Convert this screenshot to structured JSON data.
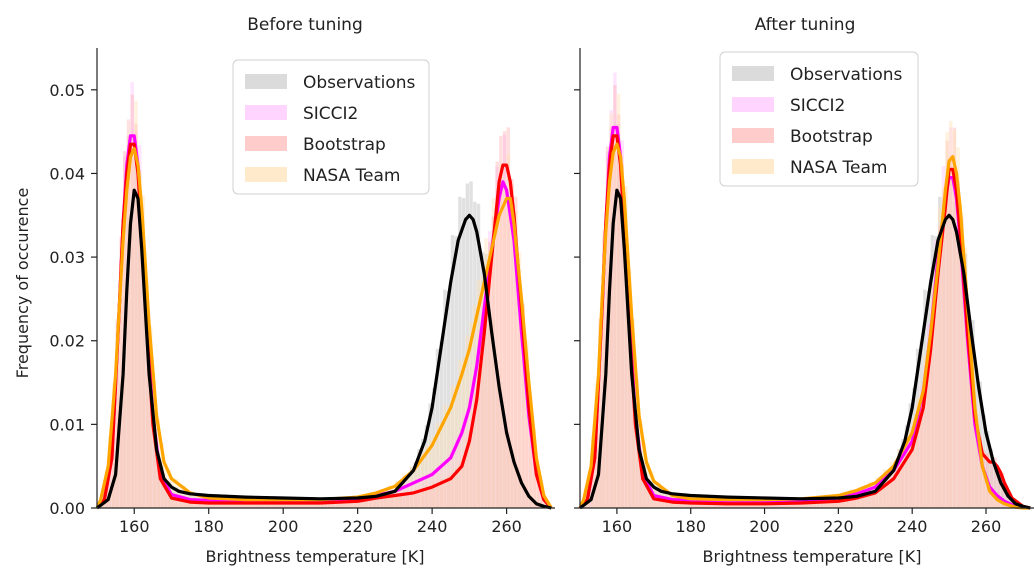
{
  "figure": {
    "ylabel": "Frequency of occurence"
  },
  "chart_data": [
    {
      "type": "area",
      "title": "Before tuning",
      "xlabel": "Brightness temperature [K]",
      "ylabel": "Frequency of occurence",
      "xlim": [
        150,
        273
      ],
      "ylim": [
        0,
        0.055
      ],
      "xticks": [
        "160",
        "180",
        "200",
        "220",
        "240",
        "260"
      ],
      "yticks": [
        "0.00",
        "0.01",
        "0.02",
        "0.03",
        "0.04",
        "0.05"
      ],
      "legend": {
        "placement": "top-center",
        "entries": [
          "Observations",
          "SICCI2",
          "Bootstrap",
          "NASA Team"
        ]
      },
      "series": [
        {
          "name": "Observations",
          "color": "#000000",
          "fill": "#c8c8c8",
          "hist_peak": [
            0.038,
            0.038
          ],
          "x": [
            150,
            153,
            155,
            157,
            158,
            159,
            160,
            161,
            162,
            164,
            166,
            168,
            170,
            172,
            175,
            180,
            190,
            200,
            210,
            220,
            225,
            230,
            235,
            238,
            240,
            243,
            245,
            247,
            249,
            250,
            251,
            252,
            254,
            256,
            258,
            260,
            262,
            264,
            266,
            268,
            270,
            272
          ],
          "y": [
            0,
            0.001,
            0.004,
            0.016,
            0.026,
            0.034,
            0.038,
            0.037,
            0.031,
            0.016,
            0.007,
            0.0035,
            0.0025,
            0.002,
            0.0017,
            0.0015,
            0.0013,
            0.0012,
            0.0011,
            0.0012,
            0.0014,
            0.002,
            0.0045,
            0.008,
            0.012,
            0.021,
            0.027,
            0.032,
            0.0345,
            0.035,
            0.0345,
            0.033,
            0.028,
            0.021,
            0.0145,
            0.009,
            0.0055,
            0.003,
            0.0014,
            0.0005,
            0.0002,
            0
          ]
        },
        {
          "name": "SICCI2",
          "color": "#ff00ff",
          "fill": "#ffbfff",
          "x": [
            150,
            152,
            154,
            156,
            157,
            158,
            159,
            160,
            161,
            162,
            163,
            165,
            167,
            170,
            175,
            180,
            190,
            200,
            210,
            220,
            225,
            230,
            235,
            240,
            245,
            248,
            250,
            252,
            254,
            256,
            258,
            259,
            260,
            262,
            264,
            266,
            268,
            270,
            272
          ],
          "y": [
            0,
            0.001,
            0.006,
            0.024,
            0.034,
            0.041,
            0.0445,
            0.0445,
            0.041,
            0.034,
            0.025,
            0.011,
            0.004,
            0.0016,
            0.001,
            0.0009,
            0.0008,
            0.0008,
            0.0008,
            0.001,
            0.0015,
            0.002,
            0.003,
            0.004,
            0.006,
            0.009,
            0.012,
            0.017,
            0.024,
            0.031,
            0.037,
            0.039,
            0.038,
            0.032,
            0.021,
            0.011,
            0.004,
            0.001,
            0
          ]
        },
        {
          "name": "Bootstrap",
          "color": "#ff0000",
          "fill": "#ffb0b0",
          "x": [
            150,
            152,
            154,
            156,
            157,
            158,
            159,
            160,
            161,
            162,
            163,
            165,
            167,
            170,
            175,
            180,
            190,
            200,
            210,
            220,
            225,
            230,
            235,
            240,
            245,
            248,
            250,
            252,
            254,
            256,
            258,
            259,
            260,
            261,
            262,
            264,
            266,
            268,
            270,
            272
          ],
          "y": [
            0,
            0.001,
            0.006,
            0.024,
            0.034,
            0.04,
            0.0435,
            0.0435,
            0.04,
            0.033,
            0.024,
            0.01,
            0.0035,
            0.0012,
            0.0007,
            0.0006,
            0.0006,
            0.0006,
            0.0006,
            0.0008,
            0.0012,
            0.0015,
            0.0018,
            0.0025,
            0.0035,
            0.005,
            0.008,
            0.013,
            0.021,
            0.03,
            0.039,
            0.041,
            0.041,
            0.039,
            0.035,
            0.024,
            0.012,
            0.004,
            0.001,
            0
          ]
        },
        {
          "name": "NASA Team",
          "color": "#ffa500",
          "fill": "#ffe1b0",
          "x": [
            150,
            151,
            153,
            155,
            156,
            157,
            158,
            159,
            160,
            161,
            162,
            164,
            166,
            168,
            170,
            175,
            180,
            190,
            200,
            210,
            220,
            225,
            230,
            235,
            240,
            245,
            248,
            250,
            252,
            254,
            256,
            258,
            259,
            260,
            261,
            262,
            264,
            266,
            268,
            270,
            272
          ],
          "y": [
            0,
            0.001,
            0.005,
            0.016,
            0.024,
            0.032,
            0.038,
            0.042,
            0.043,
            0.041,
            0.036,
            0.022,
            0.011,
            0.0055,
            0.0035,
            0.0018,
            0.0012,
            0.001,
            0.001,
            0.001,
            0.0013,
            0.0018,
            0.0026,
            0.0045,
            0.0075,
            0.012,
            0.016,
            0.019,
            0.023,
            0.027,
            0.031,
            0.035,
            0.036,
            0.037,
            0.037,
            0.034,
            0.025,
            0.015,
            0.006,
            0.0015,
            0
          ]
        }
      ]
    },
    {
      "type": "area",
      "title": "After tuning",
      "xlabel": "Brightness temperature [K]",
      "ylabel": "",
      "xlim": [
        150,
        273
      ],
      "ylim": [
        0,
        0.055
      ],
      "xticks": [
        "160",
        "180",
        "200",
        "220",
        "240",
        "260"
      ],
      "yticks": [],
      "legend": {
        "placement": "top-center",
        "entries": [
          "Observations",
          "SICCI2",
          "Bootstrap",
          "NASA Team"
        ]
      },
      "series": [
        {
          "name": "Observations",
          "color": "#000000",
          "fill": "#c8c8c8",
          "x": [
            150,
            153,
            155,
            157,
            158,
            159,
            160,
            161,
            162,
            164,
            166,
            168,
            170,
            172,
            175,
            180,
            190,
            200,
            210,
            220,
            225,
            230,
            235,
            238,
            240,
            243,
            245,
            247,
            249,
            250,
            251,
            252,
            254,
            256,
            258,
            260,
            262,
            264,
            266,
            268,
            270,
            272
          ],
          "y": [
            0,
            0.001,
            0.004,
            0.016,
            0.026,
            0.034,
            0.038,
            0.037,
            0.031,
            0.016,
            0.007,
            0.0035,
            0.0025,
            0.002,
            0.0017,
            0.0015,
            0.0013,
            0.0012,
            0.0011,
            0.0012,
            0.0014,
            0.002,
            0.0045,
            0.008,
            0.012,
            0.021,
            0.027,
            0.032,
            0.0345,
            0.035,
            0.0345,
            0.033,
            0.028,
            0.021,
            0.0145,
            0.009,
            0.0055,
            0.003,
            0.0014,
            0.0005,
            0.0002,
            0
          ]
        },
        {
          "name": "SICCI2",
          "color": "#ff00ff",
          "fill": "#ffbfff",
          "x": [
            150,
            152,
            154,
            156,
            157,
            158,
            159,
            160,
            161,
            162,
            163,
            165,
            167,
            170,
            175,
            180,
            190,
            200,
            210,
            220,
            225,
            230,
            235,
            240,
            243,
            245,
            247,
            249,
            250,
            251,
            252,
            253,
            255,
            257,
            259,
            261,
            263,
            265,
            267,
            270,
            272
          ],
          "y": [
            0,
            0.001,
            0.006,
            0.024,
            0.034,
            0.042,
            0.0455,
            0.0455,
            0.042,
            0.034,
            0.025,
            0.011,
            0.004,
            0.0015,
            0.001,
            0.0009,
            0.0008,
            0.0008,
            0.0009,
            0.0012,
            0.0017,
            0.0025,
            0.0045,
            0.008,
            0.014,
            0.021,
            0.03,
            0.037,
            0.0395,
            0.0395,
            0.037,
            0.032,
            0.02,
            0.01,
            0.005,
            0.0025,
            0.0015,
            0.0008,
            0.0004,
            0.0001,
            0
          ]
        },
        {
          "name": "Bootstrap",
          "color": "#ff0000",
          "fill": "#ffb0b0",
          "x": [
            150,
            152,
            154,
            156,
            157,
            158,
            159,
            160,
            161,
            162,
            163,
            165,
            167,
            170,
            175,
            180,
            190,
            200,
            210,
            220,
            225,
            230,
            235,
            240,
            243,
            245,
            247,
            249,
            250,
            251,
            252,
            253,
            255,
            257,
            259,
            261,
            262,
            263,
            264,
            265,
            267,
            270,
            272
          ],
          "y": [
            0,
            0.001,
            0.006,
            0.024,
            0.034,
            0.041,
            0.0445,
            0.0445,
            0.041,
            0.033,
            0.024,
            0.01,
            0.0035,
            0.0011,
            0.0007,
            0.0006,
            0.0005,
            0.0005,
            0.0006,
            0.0008,
            0.0012,
            0.0018,
            0.0035,
            0.007,
            0.012,
            0.019,
            0.028,
            0.036,
            0.0405,
            0.0405,
            0.038,
            0.033,
            0.021,
            0.011,
            0.0065,
            0.0055,
            0.0055,
            0.005,
            0.0042,
            0.003,
            0.0012,
            0.0002,
            0
          ]
        },
        {
          "name": "NASA Team",
          "color": "#ffa500",
          "fill": "#ffe1b0",
          "x": [
            150,
            151,
            153,
            155,
            156,
            157,
            158,
            159,
            160,
            161,
            162,
            164,
            166,
            168,
            170,
            175,
            180,
            190,
            200,
            210,
            220,
            225,
            230,
            235,
            240,
            243,
            245,
            247,
            249,
            250,
            251,
            252,
            253,
            255,
            257,
            259,
            261,
            263,
            265,
            268,
            270,
            272
          ],
          "y": [
            0,
            0.001,
            0.005,
            0.016,
            0.025,
            0.033,
            0.039,
            0.0425,
            0.0435,
            0.042,
            0.037,
            0.023,
            0.011,
            0.0055,
            0.0032,
            0.0015,
            0.0011,
            0.001,
            0.001,
            0.0011,
            0.0015,
            0.0021,
            0.003,
            0.005,
            0.009,
            0.014,
            0.021,
            0.029,
            0.038,
            0.0415,
            0.042,
            0.04,
            0.036,
            0.024,
            0.012,
            0.005,
            0.002,
            0.001,
            0.0005,
            0.0001,
            0,
            0
          ]
        }
      ]
    }
  ]
}
